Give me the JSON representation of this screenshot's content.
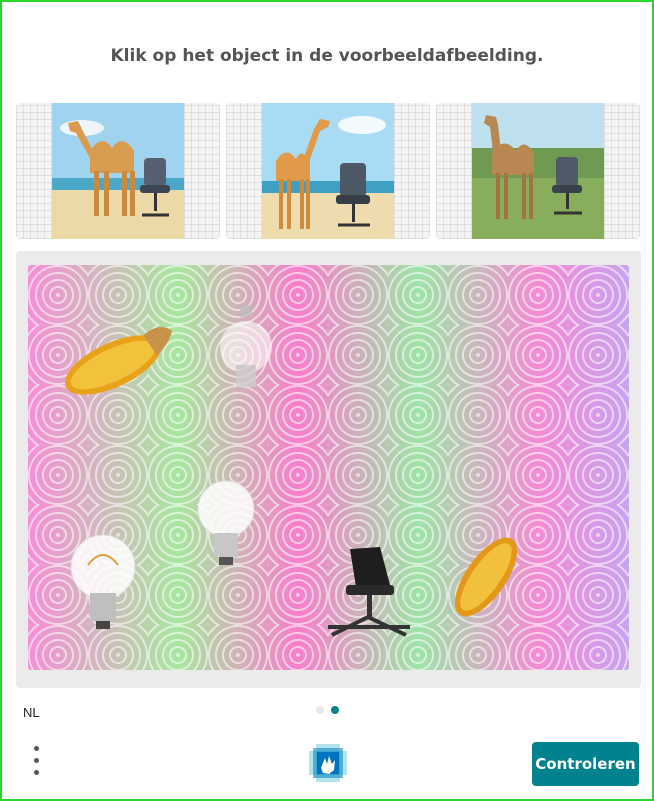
{
  "prompt": {
    "text": "Klik op het object in de voorbeeldafbeelding."
  },
  "examples": [
    {
      "icon": "camel-chair-beach-icon"
    },
    {
      "icon": "camel-chair-beach-icon"
    },
    {
      "icon": "camel-chair-park-icon"
    }
  ],
  "challenge": {
    "objects": [
      "corn-icon",
      "lightbulb-icon",
      "lightbulb-icon",
      "lightbulb-icon",
      "office-chair-icon",
      "corn-icon"
    ]
  },
  "footer": {
    "language": "NL",
    "pages": {
      "current": 2,
      "total": 2
    },
    "check_label": "Controleren"
  },
  "colors": {
    "accent": "#00838f",
    "frame": "#2bd62b"
  }
}
